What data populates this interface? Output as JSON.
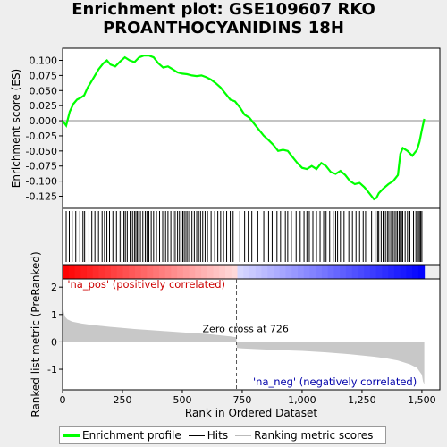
{
  "title_line1": "Enrichment plot: GSE109607 RKO",
  "title_line2": "PROANTHOCYANIDINS 18H",
  "legend": [
    {
      "label": "Enrichment profile",
      "color": "#00ff00"
    },
    {
      "label": "Hits",
      "color": "#000000"
    },
    {
      "label": "Ranking metric scores",
      "color": "#bbbbbb"
    }
  ],
  "colors": {
    "profile": "#00ff00",
    "metric": "#c8c8c8",
    "pos": "#ff0000",
    "neg": "#0000ff",
    "text_pos": "#cc0000",
    "text_neg": "#0000aa"
  },
  "chart_data": {
    "type": "line",
    "top_panel": {
      "ylabel": "Enrichment score (ES)",
      "ylim": [
        -0.145,
        0.12
      ],
      "yticks": [
        0.1,
        0.075,
        0.05,
        0.025,
        0.0,
        -0.025,
        -0.05,
        -0.075,
        -0.1,
        -0.125
      ],
      "ytick_labels": [
        "0.100",
        "0.075",
        "0.050",
        "0.025",
        "0.000",
        "-0.025",
        "-0.050",
        "-0.075",
        "-0.100",
        "-0.125"
      ],
      "xlim": [
        0,
        1575
      ],
      "es_profile": {
        "x": [
          0,
          15,
          30,
          45,
          60,
          75,
          90,
          105,
          120,
          135,
          150,
          170,
          185,
          200,
          220,
          240,
          260,
          280,
          300,
          320,
          340,
          360,
          380,
          400,
          420,
          440,
          460,
          480,
          500,
          520,
          540,
          560,
          580,
          600,
          620,
          640,
          660,
          680,
          700,
          720,
          740,
          760,
          780,
          800,
          820,
          840,
          860,
          880,
          900,
          920,
          940,
          960,
          980,
          1000,
          1020,
          1040,
          1060,
          1080,
          1100,
          1120,
          1140,
          1160,
          1180,
          1200,
          1220,
          1240,
          1260,
          1280,
          1300,
          1310,
          1320,
          1340,
          1360,
          1380,
          1400,
          1410,
          1420,
          1440,
          1460,
          1480,
          1490,
          1500,
          1510
        ],
        "values": [
          0.0,
          -0.008,
          0.015,
          0.028,
          0.035,
          0.038,
          0.042,
          0.055,
          0.065,
          0.075,
          0.085,
          0.095,
          0.1,
          0.093,
          0.09,
          0.098,
          0.105,
          0.1,
          0.097,
          0.105,
          0.108,
          0.108,
          0.105,
          0.095,
          0.088,
          0.09,
          0.085,
          0.08,
          0.078,
          0.077,
          0.075,
          0.074,
          0.075,
          0.072,
          0.068,
          0.062,
          0.055,
          0.045,
          0.035,
          0.032,
          0.022,
          0.01,
          0.005,
          -0.005,
          -0.015,
          -0.025,
          -0.032,
          -0.04,
          -0.05,
          -0.048,
          -0.05,
          -0.06,
          -0.07,
          -0.078,
          -0.08,
          -0.075,
          -0.08,
          -0.07,
          -0.075,
          -0.085,
          -0.088,
          -0.083,
          -0.09,
          -0.1,
          -0.105,
          -0.103,
          -0.11,
          -0.12,
          -0.13,
          -0.128,
          -0.12,
          -0.112,
          -0.105,
          -0.1,
          -0.09,
          -0.055,
          -0.045,
          -0.05,
          -0.058,
          -0.048,
          -0.035,
          -0.015,
          0.003
        ]
      }
    },
    "bottom_panel": {
      "ylabel": "Ranked list metric (PreRanked)",
      "xlabel": "Rank in Ordered Dataset",
      "ylim": [
        -1.75,
        2.3
      ],
      "yticks": [
        2,
        1,
        0,
        -1
      ],
      "xticks": [
        0,
        250,
        500,
        750,
        1000,
        1250,
        1500
      ],
      "xtick_labels": [
        "0",
        "250",
        "500",
        "750",
        "1,000",
        "1,250",
        "1,500"
      ],
      "n_genes": 1510,
      "zero_cross": 726,
      "zero_cross_label": "Zero cross at 726",
      "pos_label": "'na_pos' (positively correlated)",
      "neg_label": "'na_neg' (negatively correlated)",
      "metric_samples": {
        "rank": [
          0,
          5,
          10,
          20,
          40,
          80,
          120,
          200,
          300,
          400,
          500,
          600,
          700,
          725,
          727,
          750,
          800,
          900,
          1000,
          1100,
          1200,
          1300,
          1350,
          1400,
          1450,
          1480,
          1500,
          1505,
          1510
        ],
        "value": [
          1.5,
          1.1,
          0.92,
          0.82,
          0.74,
          0.67,
          0.62,
          0.55,
          0.47,
          0.41,
          0.35,
          0.29,
          0.2,
          0.17,
          -0.22,
          -0.24,
          -0.26,
          -0.3,
          -0.33,
          -0.38,
          -0.45,
          -0.54,
          -0.6,
          -0.68,
          -0.82,
          -0.95,
          -1.2,
          -1.45,
          -1.55
        ]
      }
    },
    "hits": [
      15,
      28,
      40,
      55,
      72,
      85,
      92,
      110,
      122,
      135,
      150,
      165,
      175,
      185,
      196,
      210,
      225,
      240,
      248,
      256,
      262,
      270,
      282,
      292,
      300,
      306,
      312,
      318,
      325,
      335,
      345,
      352,
      360,
      370,
      380,
      392,
      405,
      418,
      430,
      440,
      452,
      462,
      470,
      480,
      488,
      495,
      502,
      508,
      515,
      522,
      530,
      540,
      550,
      560,
      568,
      576,
      585,
      595,
      605,
      620,
      635,
      648,
      660,
      672,
      685,
      700,
      712,
      740,
      760,
      775,
      790,
      815,
      840,
      860,
      875,
      895,
      910,
      920,
      930,
      940,
      955,
      975,
      992,
      1008,
      1020,
      1030,
      1045,
      1060,
      1075,
      1090,
      1100,
      1115,
      1130,
      1140,
      1148,
      1160,
      1175,
      1195,
      1210,
      1225,
      1240,
      1255,
      1265,
      1290,
      1305,
      1315,
      1320,
      1330,
      1338,
      1348,
      1356,
      1362,
      1370,
      1378,
      1385,
      1392,
      1398,
      1405,
      1410,
      1415,
      1420,
      1430,
      1440,
      1450,
      1465,
      1475,
      1485,
      1490,
      1495,
      1500
    ]
  }
}
